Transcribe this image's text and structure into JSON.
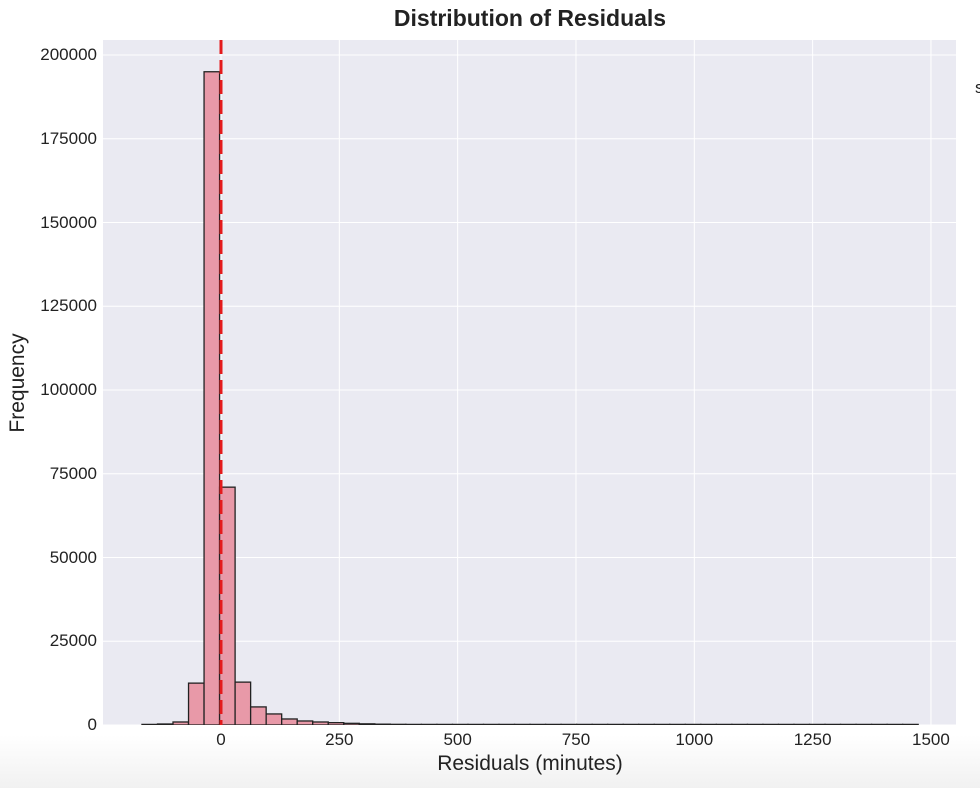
{
  "chart_data": {
    "type": "bar",
    "title": "Distribution of Residuals",
    "xlabel": "Residuals (minutes)",
    "ylabel": "Frequency",
    "xlim": [
      -195,
      1560
    ],
    "ylim": [
      0,
      204500
    ],
    "x_ticks": [
      "0",
      "250",
      "500",
      "750",
      "1000",
      "1250",
      "1500"
    ],
    "y_ticks": [
      "0",
      "25000",
      "50000",
      "75000",
      "100000",
      "125000",
      "150000",
      "175000",
      "200000"
    ],
    "grid": true,
    "bin_start": -167,
    "bin_width": 32.8,
    "bins": 50,
    "values": [
      100,
      300,
      900,
      12500,
      195000,
      71000,
      12800,
      5400,
      3300,
      1800,
      1200,
      900,
      700,
      500,
      350,
      250,
      200,
      150,
      120,
      100,
      80,
      60,
      40,
      30,
      20,
      15,
      10,
      8,
      6,
      5,
      4,
      3,
      3,
      2,
      2,
      2,
      1,
      1,
      1,
      1,
      1,
      1,
      1,
      1,
      1,
      1,
      1,
      1,
      1,
      1
    ],
    "reference_line": {
      "x": 0,
      "style": "dashed",
      "color": "#e41a1c"
    },
    "bar_color": "#e899a8",
    "bar_edge_color": "#222222"
  },
  "edge_glyph": "s"
}
